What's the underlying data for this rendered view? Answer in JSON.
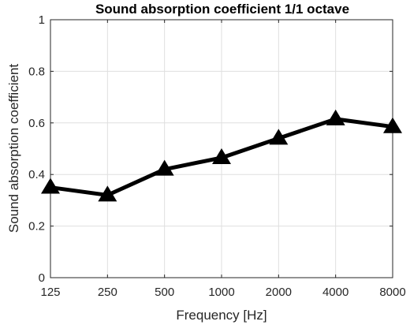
{
  "chart_data": {
    "type": "line",
    "title": "Sound absorption coefficient 1/1 octave",
    "xlabel": "Frequency [Hz]",
    "ylabel": "Sound absorption coefficient",
    "categories": [
      "125",
      "250",
      "500",
      "1000",
      "2000",
      "4000",
      "8000"
    ],
    "series": [
      {
        "values": [
          0.35,
          0.32,
          0.42,
          0.465,
          0.54,
          0.615,
          0.585
        ]
      }
    ],
    "ylim": [
      0,
      1
    ],
    "yticks": [
      "0",
      "0.2",
      "0.4",
      "0.6",
      "0.8",
      "1"
    ],
    "yticks_values": [
      0,
      0.2,
      0.4,
      0.6,
      0.8,
      1
    ],
    "grid": true,
    "legend": "none",
    "marker": "triangle",
    "line_color": "#000000",
    "grid_color": "#dfdfdf",
    "axis_color": "#262626"
  }
}
